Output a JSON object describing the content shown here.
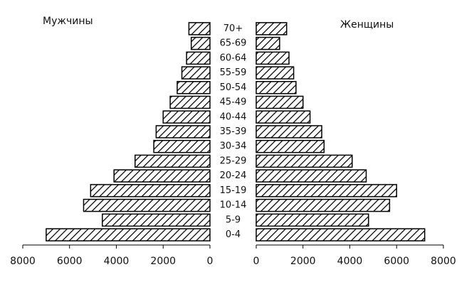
{
  "chart_data": {
    "type": "pyramid",
    "categories": [
      "0-4",
      "5-9",
      "10-14",
      "15-19",
      "20-24",
      "25-29",
      "30-34",
      "35-39",
      "40-44",
      "45-49",
      "50-54",
      "55-59",
      "60-64",
      "65-69",
      "70+"
    ],
    "series": [
      {
        "name": "Мужчины",
        "color": "#000000",
        "values": [
          7000,
          4600,
          5400,
          5100,
          4100,
          3200,
          2400,
          2300,
          2000,
          1700,
          1400,
          1200,
          1000,
          800,
          900
        ]
      },
      {
        "name": "Женщины",
        "color": "#000000",
        "values": [
          7200,
          4800,
          5700,
          6000,
          4700,
          4100,
          2900,
          2800,
          2300,
          2000,
          1700,
          1600,
          1400,
          1000,
          1300
        ]
      }
    ],
    "xlim": [
      0,
      8000
    ],
    "xticks": [
      0,
      2000,
      4000,
      6000,
      8000
    ]
  }
}
